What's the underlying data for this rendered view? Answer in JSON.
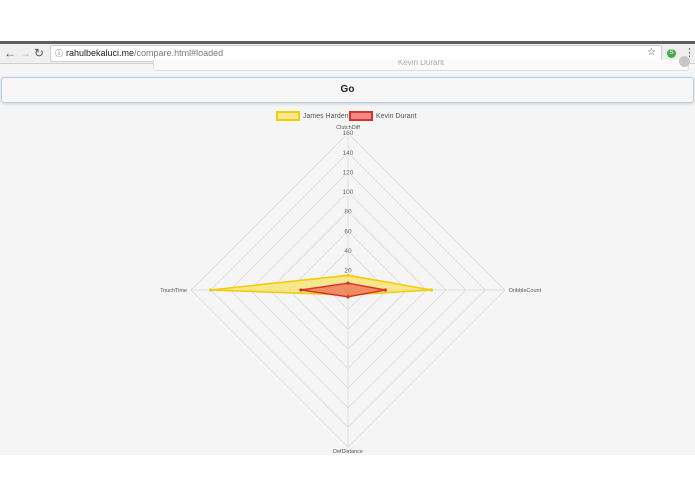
{
  "browser": {
    "url_domain": "rahulbekaluci.me",
    "url_path": "/compare.html#loaded",
    "info_icon": "info-icon",
    "bookmark_icon": "star-icon",
    "extension_icon": "extension-icon",
    "extension_label": "S",
    "menu_icon": "kebab-menu-icon",
    "back_icon": "back-arrow-icon",
    "forward_icon": "forward-arrow-icon",
    "reload_icon": "reload-icon"
  },
  "previous_field": {
    "value": "Kevin Durant"
  },
  "go_button": {
    "label": "Go"
  },
  "chart_data": {
    "type": "radar",
    "axes": [
      "ClutchDiff",
      "DribbleCount",
      "DefDistance",
      "TouchTime"
    ],
    "r_min": 0,
    "r_max": 160,
    "ticks": [
      20,
      40,
      60,
      80,
      100,
      120,
      140,
      160
    ],
    "legend_position": "top",
    "series": [
      {
        "name": "James Harden",
        "values": [
          15,
          85,
          5,
          140
        ],
        "stroke": "#f2cc0c",
        "fill": "#f8e36a"
      },
      {
        "name": "Kevin Durant",
        "values": [
          7,
          38,
          7,
          48
        ],
        "stroke": "#d7322e",
        "fill": "#ee7a5a"
      }
    ]
  }
}
